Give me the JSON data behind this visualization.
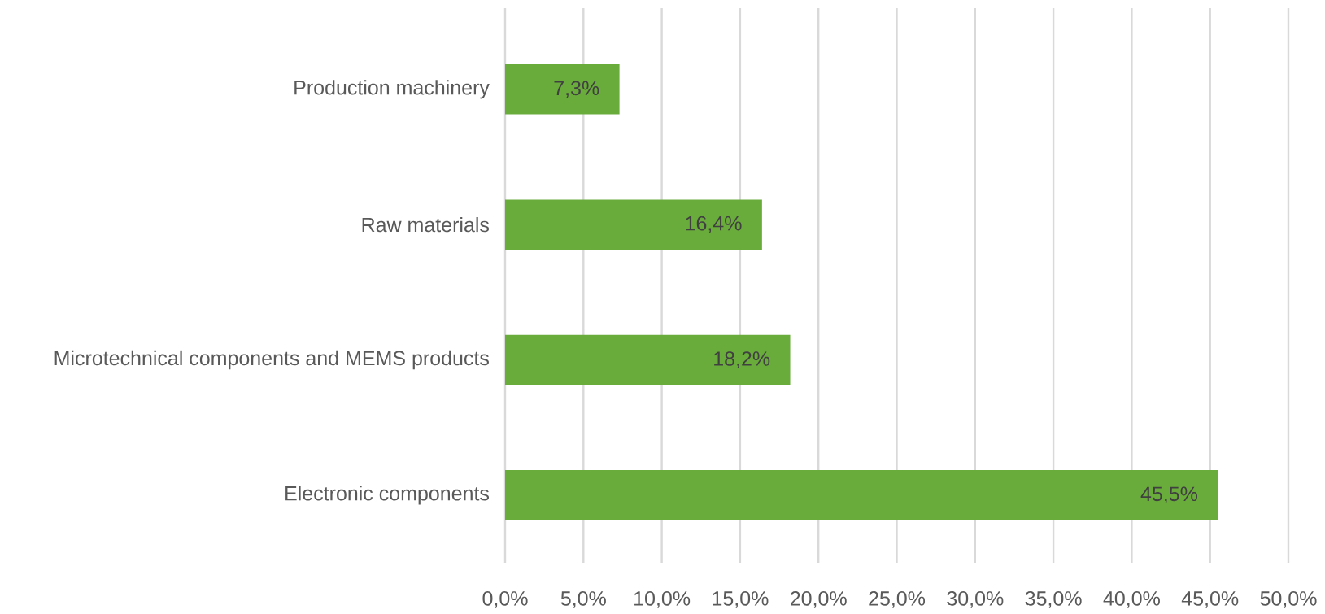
{
  "chart_data": {
    "type": "bar",
    "orientation": "horizontal",
    "categories": [
      "Production machinery",
      "Raw materials",
      "Microtechnical components and MEMS products",
      "Electronic components"
    ],
    "values": [
      7.3,
      16.4,
      18.2,
      45.5
    ],
    "value_labels": [
      "7,3%",
      "16,4%",
      "18,2%",
      "45,5%"
    ],
    "color": "#6aac3c",
    "xlim": [
      0,
      50
    ],
    "xticks": [
      {
        "value": 0,
        "label": "0,0%"
      },
      {
        "value": 5,
        "label": "5,0%"
      },
      {
        "value": 10,
        "label": "10,0%"
      },
      {
        "value": 15,
        "label": "15,0%"
      },
      {
        "value": 20,
        "label": "20,0%"
      },
      {
        "value": 25,
        "label": "25,0%"
      },
      {
        "value": 30,
        "label": "30,0%"
      },
      {
        "value": 35,
        "label": "35,0%"
      },
      {
        "value": 40,
        "label": "40,0%"
      },
      {
        "value": 45,
        "label": "45,0%"
      },
      {
        "value": 50,
        "label": "50,0%"
      }
    ],
    "grid": "x"
  }
}
